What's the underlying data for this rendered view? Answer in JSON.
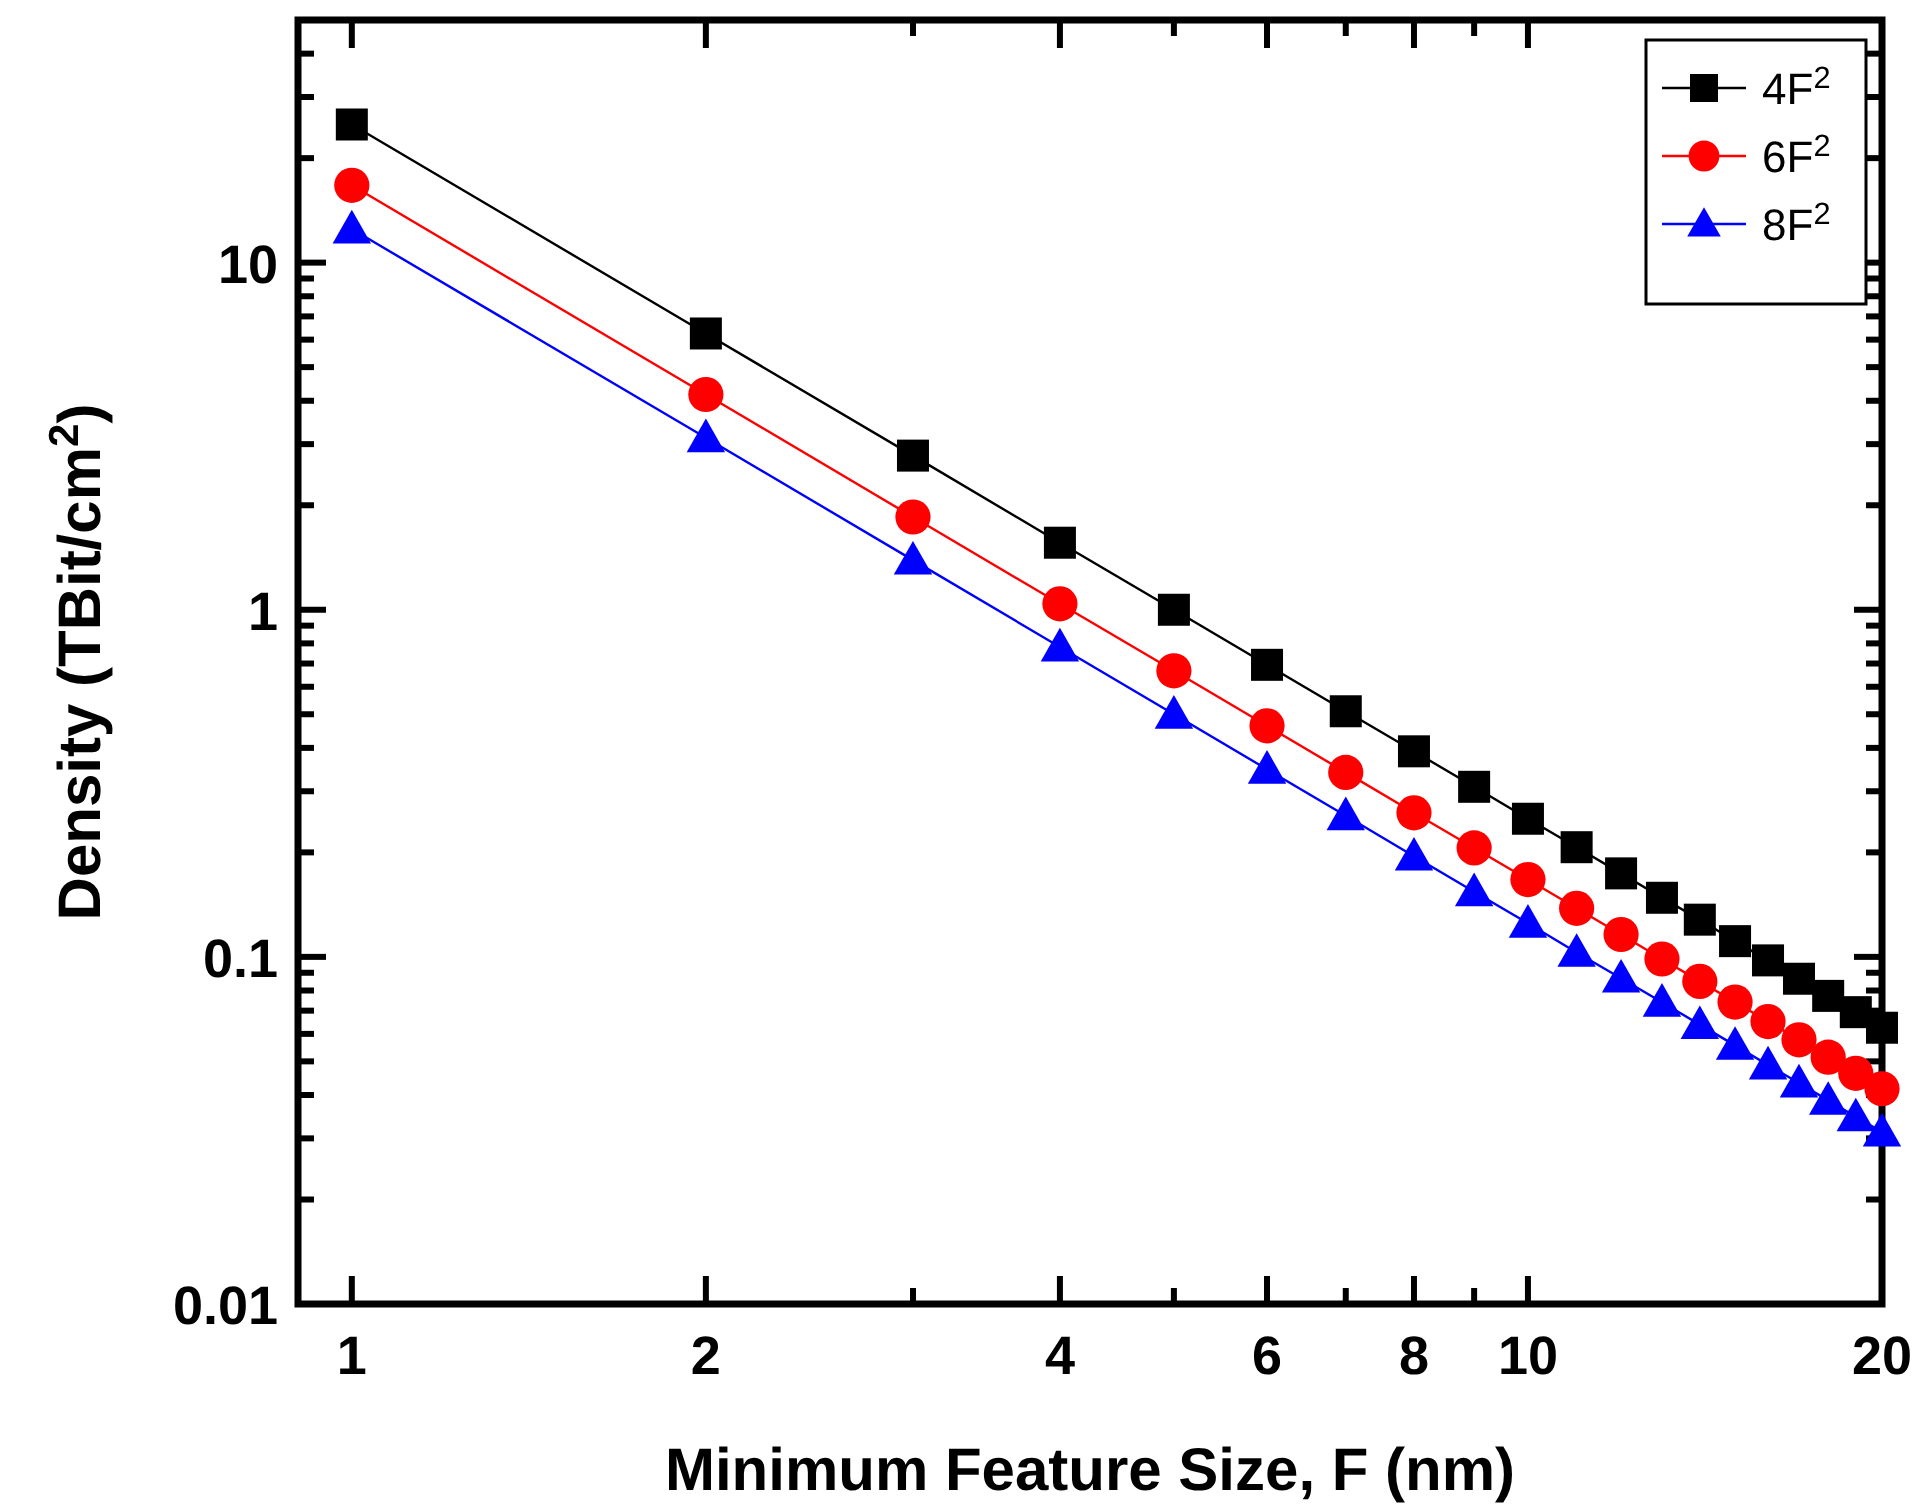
{
  "chart_data": {
    "type": "line",
    "xlabel": "Minimum Feature Size, F (nm)",
    "ylabel": "Density (TBit/cm$^{2}$)",
    "log": "xy",
    "xlim": [
      0.9,
      20
    ],
    "ylim": [
      0.01,
      50
    ],
    "xticks": [
      1,
      2,
      {
        "value": 3,
        "label": null
      },
      4,
      {
        "value": 5,
        "label": null
      },
      6,
      {
        "value": 7,
        "label": null
      },
      8,
      {
        "value": 9,
        "label": null
      },
      10,
      20
    ],
    "yticks": [
      0.01,
      {
        "value": 0.02,
        "label": null
      },
      {
        "value": 0.03,
        "label": null
      },
      {
        "value": 0.04,
        "label": null
      },
      {
        "value": 0.05,
        "label": null
      },
      {
        "value": 0.06,
        "label": null
      },
      {
        "value": 0.07,
        "label": null
      },
      {
        "value": 0.08,
        "label": null
      },
      {
        "value": 0.09,
        "label": null
      },
      0.1,
      {
        "value": 0.2,
        "label": null
      },
      {
        "value": 0.3,
        "label": null
      },
      {
        "value": 0.4,
        "label": null
      },
      {
        "value": 0.5,
        "label": null
      },
      {
        "value": 0.6,
        "label": null
      },
      {
        "value": 0.7,
        "label": null
      },
      {
        "value": 0.8,
        "label": null
      },
      {
        "value": 0.9,
        "label": null
      },
      1,
      {
        "value": 2,
        "label": null
      },
      {
        "value": 3,
        "label": null
      },
      {
        "value": 4,
        "label": null
      },
      {
        "value": 5,
        "label": null
      },
      {
        "value": 6,
        "label": null
      },
      {
        "value": 7,
        "label": null
      },
      {
        "value": 8,
        "label": null
      },
      {
        "value": 9,
        "label": null
      },
      10,
      {
        "value": 20,
        "label": null
      },
      {
        "value": 30,
        "label": null
      },
      {
        "value": 40,
        "label": null
      }
    ],
    "grid": false,
    "legend": "top right",
    "line_style": "solid",
    "x": [
      1,
      2,
      3,
      4,
      5,
      6,
      7,
      8,
      9,
      10,
      11,
      12,
      13,
      14,
      15,
      16,
      17,
      18,
      19,
      20
    ],
    "series": [
      {
        "name": "4F$^{2}$",
        "color": "#000000",
        "marker": "square",
        "values": [
          25,
          6.25,
          2.78,
          1.56,
          1.0,
          0.694,
          0.51,
          0.391,
          0.309,
          0.25,
          0.207,
          0.174,
          0.148,
          0.128,
          0.111,
          0.0977,
          0.0865,
          0.0772,
          0.0693,
          0.0625
        ]
      },
      {
        "name": "6F$^{2}$",
        "color": "#ff0000",
        "marker": "circle",
        "values": [
          16.7,
          4.17,
          1.85,
          1.04,
          0.667,
          0.463,
          0.34,
          0.26,
          0.206,
          0.167,
          0.138,
          0.116,
          0.0986,
          0.085,
          0.0741,
          0.0651,
          0.0577,
          0.0514,
          0.0462,
          0.0417
        ]
      },
      {
        "name": "8F$^{2}$",
        "color": "#0000ff",
        "marker": "triangle",
        "values": [
          12.5,
          3.13,
          1.39,
          0.781,
          0.5,
          0.347,
          0.255,
          0.195,
          0.154,
          0.125,
          0.103,
          0.0868,
          0.074,
          0.0638,
          0.0556,
          0.0488,
          0.0433,
          0.0386,
          0.0346,
          0.0313
        ]
      }
    ]
  }
}
